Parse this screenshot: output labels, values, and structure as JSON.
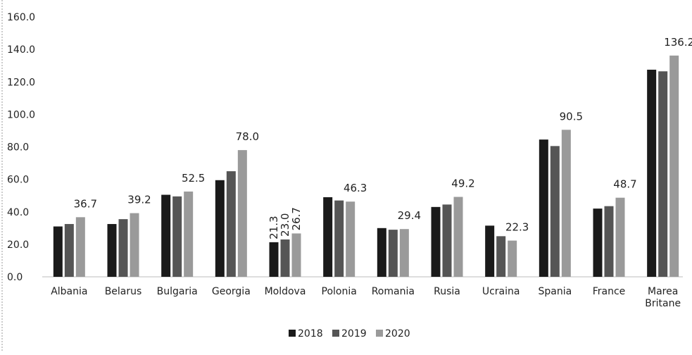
{
  "chart_data": {
    "type": "bar",
    "categories": [
      "Albania",
      "Belarus",
      "Bulgaria",
      "Georgia",
      "Moldova",
      "Polonia",
      "Romania",
      "Rusia",
      "Ucraina",
      "Spania",
      "France",
      "Marea Britane"
    ],
    "series": [
      {
        "name": "2018",
        "values": [
          31.0,
          32.5,
          50.5,
          59.5,
          21.3,
          49.0,
          30.0,
          43.0,
          31.5,
          84.5,
          42.0,
          127.5
        ],
        "color": "#1a1a1a"
      },
      {
        "name": "2019",
        "values": [
          32.5,
          35.5,
          49.5,
          65.0,
          23.0,
          47.0,
          29.0,
          44.5,
          25.0,
          80.5,
          43.5,
          126.5
        ],
        "color": "#555555"
      },
      {
        "name": "2020",
        "values": [
          36.7,
          39.2,
          52.5,
          78.0,
          26.7,
          46.3,
          29.4,
          49.2,
          22.3,
          90.5,
          48.7,
          136.2
        ],
        "color": "#9a9a9a"
      }
    ],
    "data_labels": [
      {
        "category": "Albania",
        "series": "2020",
        "text": "36.7"
      },
      {
        "category": "Belarus",
        "series": "2020",
        "text": "39.2"
      },
      {
        "category": "Bulgaria",
        "series": "2020",
        "text": "52.5"
      },
      {
        "category": "Georgia",
        "series": "2020",
        "text": "78.0"
      },
      {
        "category": "Moldova",
        "series": "2018",
        "text": "21.3",
        "rotated": true
      },
      {
        "category": "Moldova",
        "series": "2019",
        "text": "23.0",
        "rotated": true
      },
      {
        "category": "Moldova",
        "series": "2020",
        "text": "26.7",
        "rotated": true
      },
      {
        "category": "Polonia",
        "series": "2020",
        "text": "46.3"
      },
      {
        "category": "Romania",
        "series": "2020",
        "text": "29.4"
      },
      {
        "category": "Rusia",
        "series": "2020",
        "text": "49.2"
      },
      {
        "category": "Ucraina",
        "series": "2020",
        "text": "22.3"
      },
      {
        "category": "Spania",
        "series": "2020",
        "text": "90.5"
      },
      {
        "category": "France",
        "series": "2020",
        "text": "48.7"
      },
      {
        "category": "Marea Britane",
        "series": "2020",
        "text": "136.2"
      }
    ],
    "yticks": [
      "0.0",
      "20.0",
      "40.0",
      "60.0",
      "80.0",
      "100.0",
      "120.0",
      "140.0",
      "160.0"
    ],
    "ylim": [
      0,
      160
    ],
    "grid": false,
    "legend_position": "bottom",
    "title": "",
    "xlabel": "",
    "ylabel": ""
  }
}
